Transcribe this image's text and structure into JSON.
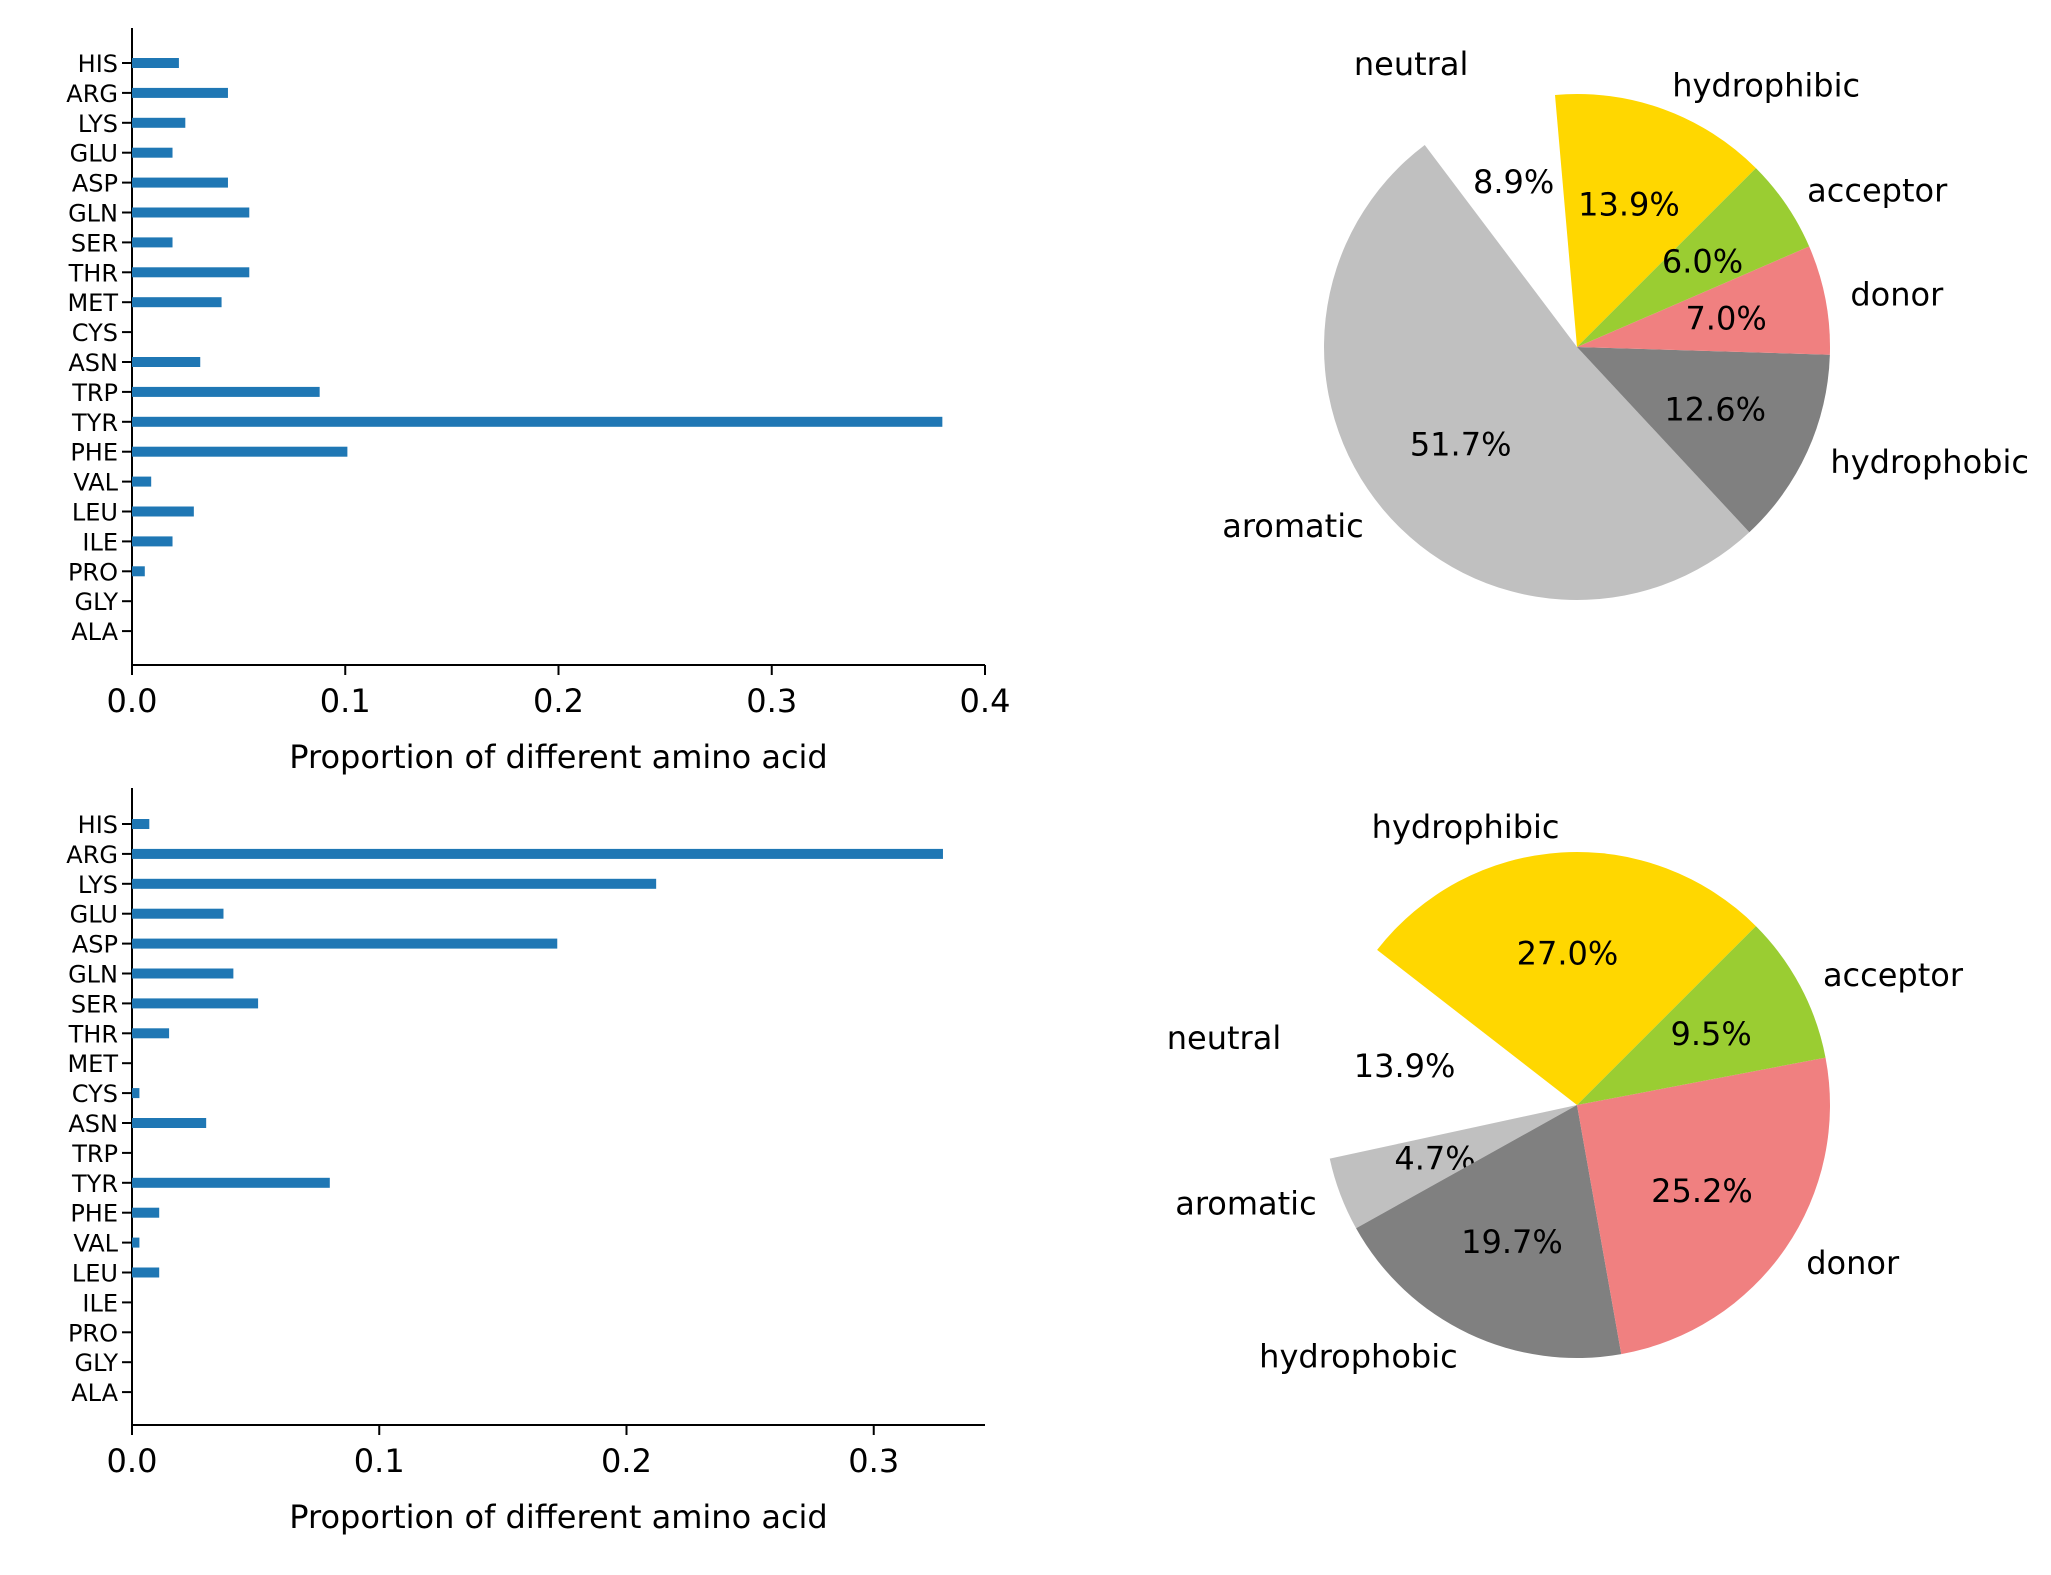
{
  "chart_data": [
    {
      "type": "bar",
      "orientation": "horizontal",
      "categories": [
        "HIS",
        "ARG",
        "LYS",
        "GLU",
        "ASP",
        "GLN",
        "SER",
        "THR",
        "MET",
        "CYS",
        "ASN",
        "TRP",
        "TYR",
        "PHE",
        "VAL",
        "LEU",
        "ILE",
        "PRO",
        "GLY",
        "ALA"
      ],
      "values": [
        0.022,
        0.045,
        0.025,
        0.019,
        0.045,
        0.055,
        0.019,
        0.055,
        0.042,
        0.0,
        0.032,
        0.088,
        0.38,
        0.101,
        0.009,
        0.029,
        0.019,
        0.006,
        0.0,
        0.0
      ],
      "xlabel": "Proportion of different amino acid",
      "xlim": [
        0.0,
        0.4
      ],
      "xticks": [
        "0.0",
        "0.1",
        "0.2",
        "0.3",
        "0.4"
      ],
      "color": "#1f77b4"
    },
    {
      "type": "pie",
      "labels": [
        "hydrophibic",
        "neutral",
        "aromatic",
        "hydrophobic",
        "donor",
        "acceptor"
      ],
      "values": [
        13.9,
        8.9,
        51.7,
        12.6,
        7.0,
        6.0
      ],
      "pct_labels": [
        "13.9%",
        "8.9%",
        "51.7%",
        "12.6%",
        "7.0%",
        "6.0%"
      ],
      "colors": [
        "#ffd700",
        "#ffffff",
        "#c0c0c0",
        "#808080",
        "#f08080",
        "#9acd32"
      ],
      "exploded": "neutral"
    },
    {
      "type": "bar",
      "orientation": "horizontal",
      "categories": [
        "HIS",
        "ARG",
        "LYS",
        "GLU",
        "ASP",
        "GLN",
        "SER",
        "THR",
        "MET",
        "CYS",
        "ASN",
        "TRP",
        "TYR",
        "PHE",
        "VAL",
        "LEU",
        "ILE",
        "PRO",
        "GLY",
        "ALA"
      ],
      "values": [
        0.007,
        0.328,
        0.212,
        0.037,
        0.172,
        0.041,
        0.051,
        0.015,
        0.0,
        0.003,
        0.03,
        0.0,
        0.08,
        0.011,
        0.003,
        0.011,
        0.0,
        0.0,
        0.0,
        0.0
      ],
      "xlabel": "Proportion of different amino acid",
      "xlim": [
        0.0,
        0.345
      ],
      "xticks": [
        "0.0",
        "0.1",
        "0.2",
        "0.3"
      ],
      "color": "#1f77b4"
    },
    {
      "type": "pie",
      "labels": [
        "hydrophibic",
        "neutral",
        "aromatic",
        "hydrophobic",
        "donor",
        "acceptor"
      ],
      "values": [
        27.0,
        13.9,
        4.7,
        19.7,
        25.2,
        9.5
      ],
      "pct_labels": [
        "27.0%",
        "13.9%",
        "4.7%",
        "19.7%",
        "25.2%",
        "9.5%"
      ],
      "colors": [
        "#ffd700",
        "#ffffff",
        "#c0c0c0",
        "#808080",
        "#f08080",
        "#9acd32"
      ],
      "exploded": "neutral"
    }
  ]
}
